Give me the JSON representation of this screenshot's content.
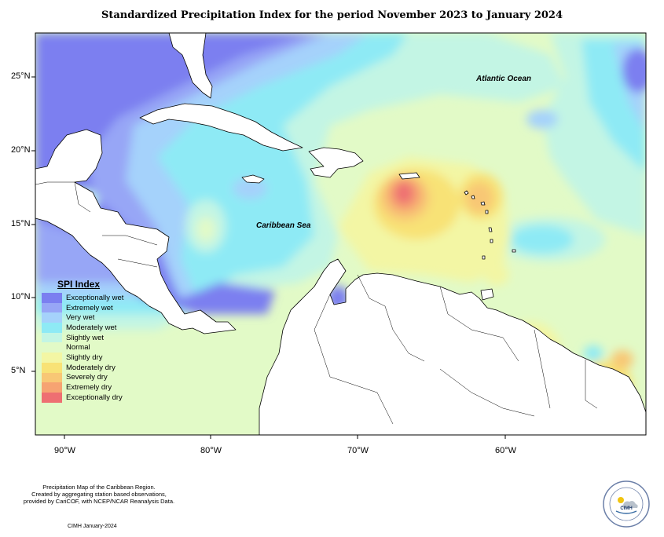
{
  "title": "Standardized Precipitation Index for the period November 2023 to January 2024",
  "map_labels": {
    "atlantic": "Atlantic Ocean",
    "caribbean": "Caribbean Sea"
  },
  "lat_labels": [
    "25°N",
    "20°N",
    "15°N",
    "10°N",
    "5°N"
  ],
  "lon_labels": [
    "90°W",
    "80°W",
    "70°W",
    "60°W"
  ],
  "legend": {
    "title": "SPI Index",
    "items": [
      {
        "label": "Exceptionally wet",
        "color": "#7b7ff0"
      },
      {
        "label": "Extremely wet",
        "color": "#97a6f6"
      },
      {
        "label": "Very wet",
        "color": "#a5d2fb"
      },
      {
        "label": "Moderately wet",
        "color": "#8eeaf5"
      },
      {
        "label": "Slightly wet",
        "color": "#c3f5e4"
      },
      {
        "label": "Normal",
        "color": "#e2fac7"
      },
      {
        "label": "Slightly dry",
        "color": "#f3f6a4"
      },
      {
        "label": "Moderately dry",
        "color": "#f8e276"
      },
      {
        "label": "Severely dry",
        "color": "#f8c775"
      },
      {
        "label": "Extremely dry",
        "color": "#f6a372"
      },
      {
        "label": "Exceptionally dry",
        "color": "#ee6f72"
      }
    ]
  },
  "footer": {
    "line1": "Precipitation Map of the Caribbean Region.",
    "line2": "Created by aggregating station based observations,",
    "line3": "provided by CariCOF, with NCEP/NCAR Reanalysis Data.",
    "date": "CIMH January-2024"
  },
  "logo": {
    "text": "CIMH"
  }
}
